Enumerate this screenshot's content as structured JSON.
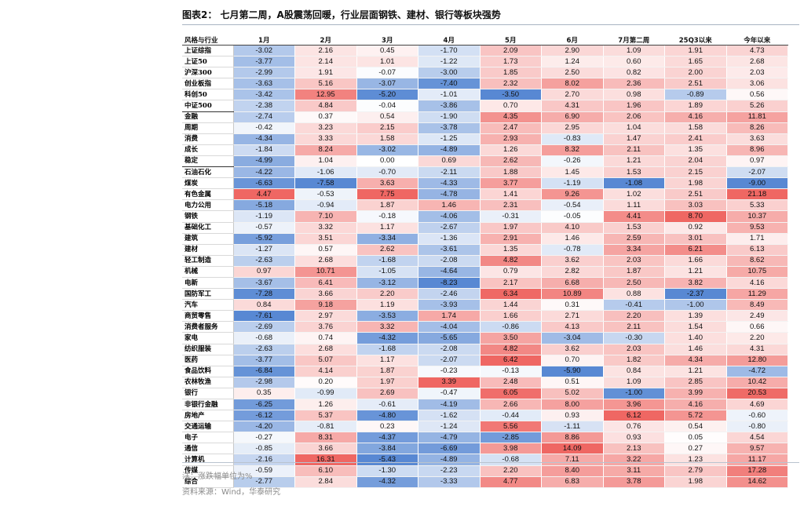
{
  "figure": {
    "title": "图表2：  七月第二周，A股震荡回暖，行业层面钢铁、建材、银行等板块强势",
    "note": "注：涨跌幅单位为%",
    "source": "资料来源：Wind，华泰研究"
  },
  "colors": {
    "positive": "#ee5f5b",
    "negative": "#4f82d1",
    "neutral": "#ffffff"
  },
  "table": {
    "header_label": "风格与行业",
    "columns": [
      "1月",
      "2月",
      "3月",
      "4月",
      "5月",
      "6月",
      "7月第二周",
      "25Q3以来",
      "今年以来"
    ],
    "groups": [
      {
        "rows": [
          {
            "label": "上证综指",
            "values": [
              "-3.02",
              "2.16",
              "0.45",
              "-1.70",
              "2.09",
              "2.90",
              "1.09",
              "1.91",
              "4.73"
            ]
          },
          {
            "label": "上证50",
            "values": [
              "-3.77",
              "2.14",
              "1.01",
              "-1.22",
              "1.73",
              "1.24",
              "0.60",
              "1.65",
              "2.68"
            ]
          },
          {
            "label": "沪深300",
            "values": [
              "-2.99",
              "1.91",
              "-0.07",
              "-3.00",
              "1.85",
              "2.50",
              "0.82",
              "2.00",
              "2.03"
            ]
          },
          {
            "label": "创业板指",
            "values": [
              "-3.63",
              "5.16",
              "-3.07",
              "-7.40",
              "2.32",
              "8.02",
              "2.36",
              "2.51",
              "3.06"
            ]
          },
          {
            "label": "科创50",
            "values": [
              "-3.42",
              "12.95",
              "-5.20",
              "-1.01",
              "-3.50",
              "2.70",
              "0.98",
              "-0.89",
              "0.56"
            ]
          },
          {
            "label": "中证500",
            "values": [
              "-2.38",
              "4.84",
              "-0.04",
              "-3.86",
              "0.70",
              "4.31",
              "1.96",
              "1.89",
              "5.26"
            ]
          }
        ]
      },
      {
        "rows": [
          {
            "label": "金融",
            "values": [
              "-2.74",
              "0.37",
              "0.54",
              "-1.90",
              "4.35",
              "6.90",
              "2.06",
              "4.16",
              "11.81"
            ]
          },
          {
            "label": "周期",
            "values": [
              "-0.42",
              "3.23",
              "2.15",
              "-3.78",
              "2.47",
              "2.95",
              "1.04",
              "1.58",
              "8.26"
            ]
          },
          {
            "label": "消费",
            "values": [
              "-4.34",
              "3.33",
              "1.58",
              "-1.25",
              "2.93",
              "-0.83",
              "1.47",
              "2.41",
              "3.63"
            ]
          },
          {
            "label": "成长",
            "values": [
              "-1.84",
              "8.24",
              "-3.02",
              "-4.89",
              "1.26",
              "8.32",
              "2.11",
              "1.35",
              "8.96"
            ]
          },
          {
            "label": "稳定",
            "values": [
              "-4.99",
              "1.04",
              "0.00",
              "0.69",
              "2.62",
              "-0.26",
              "1.21",
              "2.04",
              "0.97"
            ]
          }
        ]
      },
      {
        "rows": [
          {
            "label": "石油石化",
            "values": [
              "-4.22",
              "-1.06",
              "-0.70",
              "-2.11",
              "1.88",
              "1.45",
              "1.53",
              "2.15",
              "-2.07"
            ]
          },
          {
            "label": "煤炭",
            "values": [
              "-6.63",
              "-7.58",
              "3.63",
              "-4.33",
              "3.77",
              "-1.19",
              "-1.08",
              "1.98",
              "-9.00"
            ]
          },
          {
            "label": "有色金属",
            "values": [
              "4.47",
              "-0.53",
              "7.75",
              "-4.78",
              "1.41",
              "9.26",
              "1.02",
              "2.51",
              "21.18"
            ]
          },
          {
            "label": "电力公用",
            "values": [
              "-5.18",
              "-0.94",
              "1.87",
              "1.46",
              "2.31",
              "-0.54",
              "1.11",
              "3.03",
              "5.33"
            ]
          },
          {
            "label": "钢铁",
            "values": [
              "-1.19",
              "7.10",
              "-0.18",
              "-4.06",
              "-0.31",
              "-0.05",
              "4.41",
              "8.70",
              "10.37"
            ]
          },
          {
            "label": "基础化工",
            "values": [
              "-0.57",
              "3.32",
              "1.17",
              "-2.67",
              "1.97",
              "4.10",
              "1.53",
              "0.92",
              "9.53"
            ]
          },
          {
            "label": "建筑",
            "values": [
              "-5.92",
              "3.51",
              "-3.34",
              "-1.36",
              "2.91",
              "1.46",
              "2.59",
              "3.01",
              "1.71"
            ]
          },
          {
            "label": "建材",
            "values": [
              "-1.27",
              "0.57",
              "2.62",
              "-3.61",
              "1.35",
              "-0.78",
              "3.34",
              "6.21",
              "6.13"
            ]
          },
          {
            "label": "轻工制造",
            "values": [
              "-2.63",
              "2.68",
              "-1.68",
              "-2.08",
              "4.82",
              "3.62",
              "2.03",
              "1.66",
              "8.62"
            ]
          },
          {
            "label": "机械",
            "values": [
              "0.97",
              "10.71",
              "-1.05",
              "-4.64",
              "0.79",
              "2.82",
              "1.87",
              "1.21",
              "10.75"
            ]
          },
          {
            "label": "电新",
            "values": [
              "-3.67",
              "6.41",
              "-3.12",
              "-8.23",
              "2.17",
              "6.68",
              "2.50",
              "3.82",
              "4.16"
            ]
          },
          {
            "label": "国防军工",
            "values": [
              "-7.28",
              "3.66",
              "2.20",
              "-2.46",
              "6.34",
              "10.89",
              "0.88",
              "-2.37",
              "11.29"
            ]
          },
          {
            "label": "汽车",
            "values": [
              "0.84",
              "9.18",
              "1.19",
              "-3.93",
              "1.44",
              "0.31",
              "-0.41",
              "-1.00",
              "8.49"
            ]
          },
          {
            "label": "商贸零售",
            "values": [
              "-7.61",
              "2.97",
              "-3.53",
              "1.74",
              "1.66",
              "2.71",
              "2.20",
              "1.39",
              "2.49"
            ]
          },
          {
            "label": "消费者服务",
            "values": [
              "-2.69",
              "3.76",
              "3.32",
              "-4.04",
              "-0.86",
              "4.13",
              "2.11",
              "1.54",
              "0.66"
            ]
          },
          {
            "label": "家电",
            "values": [
              "-0.68",
              "0.74",
              "-4.32",
              "-5.65",
              "3.50",
              "-3.04",
              "-0.30",
              "1.40",
              "2.20"
            ]
          },
          {
            "label": "纺织服装",
            "values": [
              "-2.63",
              "2.68",
              "-1.68",
              "-2.08",
              "4.82",
              "3.62",
              "2.03",
              "1.46",
              "4.31"
            ]
          },
          {
            "label": "医药",
            "values": [
              "-3.77",
              "5.07",
              "1.17",
              "-2.07",
              "6.42",
              "0.70",
              "1.82",
              "4.34",
              "12.80"
            ]
          },
          {
            "label": "食品饮料",
            "values": [
              "-6.84",
              "4.14",
              "1.87",
              "-0.23",
              "-0.13",
              "-5.90",
              "0.84",
              "1.21",
              "-4.72"
            ]
          },
          {
            "label": "农林牧渔",
            "values": [
              "-2.98",
              "0.20",
              "1.97",
              "3.39",
              "2.48",
              "0.51",
              "1.09",
              "2.85",
              "10.42"
            ]
          },
          {
            "label": "银行",
            "values": [
              "0.35",
              "-0.99",
              "2.69",
              "-0.47",
              "6.05",
              "5.02",
              "-1.00",
              "3.99",
              "20.53"
            ]
          },
          {
            "label": "非银行金融",
            "values": [
              "-6.25",
              "1.26",
              "-0.61",
              "-4.19",
              "2.66",
              "8.00",
              "3.96",
              "4.16",
              "4.69"
            ]
          },
          {
            "label": "房地产",
            "values": [
              "-6.12",
              "5.37",
              "-4.80",
              "-1.62",
              "-0.44",
              "0.93",
              "6.12",
              "5.72",
              "-0.60"
            ]
          },
          {
            "label": "交通运输",
            "values": [
              "-4.20",
              "-0.81",
              "0.23",
              "-1.24",
              "5.56",
              "-1.11",
              "0.76",
              "0.54",
              "-0.80"
            ]
          },
          {
            "label": "电子",
            "values": [
              "-0.27",
              "8.31",
              "-4.37",
              "-4.79",
              "-2.85",
              "8.86",
              "0.93",
              "0.05",
              "4.54"
            ]
          },
          {
            "label": "通信",
            "values": [
              "-0.85",
              "3.66",
              "-3.84",
              "-6.69",
              "3.98",
              "14.09",
              "2.13",
              "0.27",
              "9.57"
            ]
          },
          {
            "label": "计算机",
            "values": [
              "-2.16",
              "16.31",
              "-5.43",
              "-4.89",
              "-0.68",
              "7.11",
              "3.22",
              "1.23",
              "11.17"
            ]
          },
          {
            "label": "传媒",
            "values": [
              "-0.59",
              "6.10",
              "-1.30",
              "-2.23",
              "2.20",
              "8.40",
              "3.11",
              "2.79",
              "17.28"
            ]
          },
          {
            "label": "综合",
            "values": [
              "-2.77",
              "2.84",
              "-4.32",
              "-3.33",
              "4.77",
              "6.83",
              "3.78",
              "1.98",
              "14.62"
            ]
          }
        ]
      }
    ]
  }
}
